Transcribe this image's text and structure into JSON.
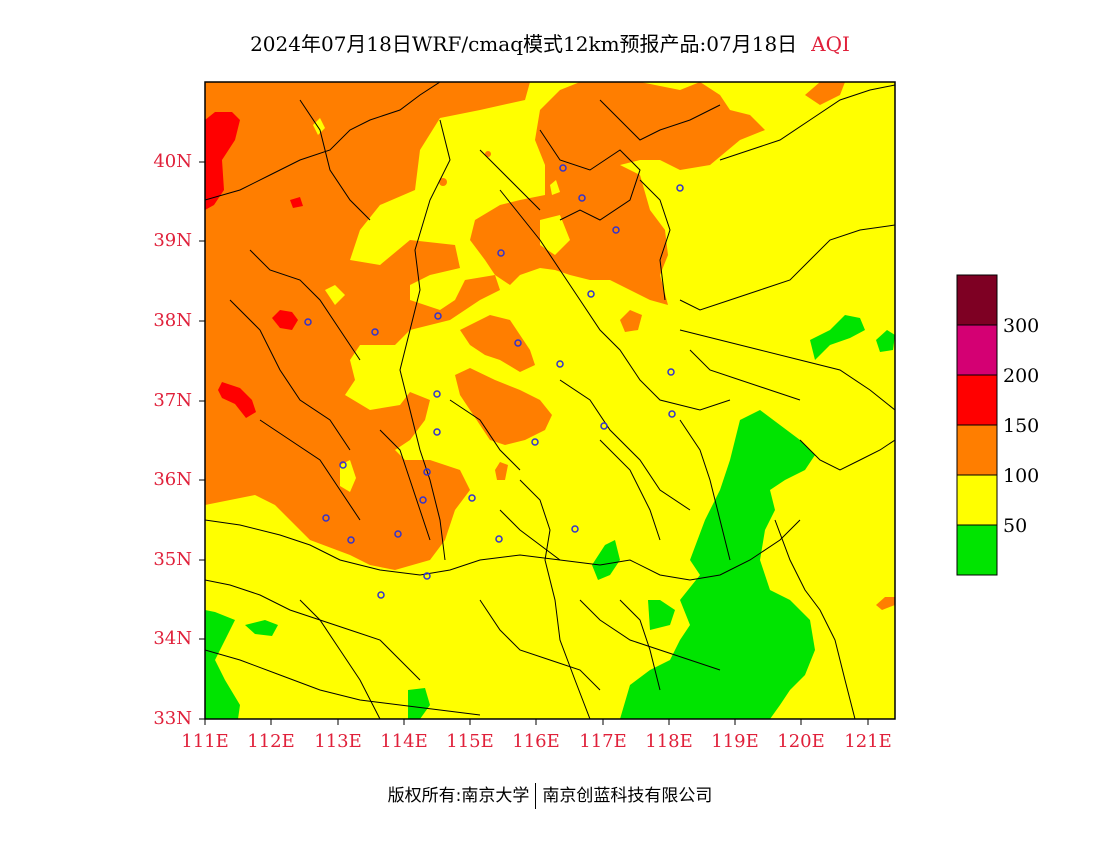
{
  "title": {
    "main": "2024年07月18日WRF/cmaq模式12km预报产品:07月18日",
    "product": "AQI"
  },
  "axes": {
    "lat_labels": [
      "33N",
      "34N",
      "35N",
      "36N",
      "37N",
      "38N",
      "39N",
      "40N"
    ],
    "lon_labels": [
      "111E",
      "112E",
      "113E",
      "114E",
      "115E",
      "116E",
      "117E",
      "118E",
      "119E",
      "120E",
      "121E"
    ],
    "lat_range": [
      33,
      41
    ],
    "lon_range": [
      111,
      121.4
    ]
  },
  "legend": {
    "labels": [
      "50",
      "100",
      "150",
      "200",
      "300"
    ],
    "colors": [
      "#00e400",
      "#ffff00",
      "#ff7e00",
      "#ff0000",
      "#d40073",
      "#7e0023"
    ]
  },
  "copyright": {
    "left": "版权所有:南京大学",
    "right": "南京创蓝科技有限公司"
  },
  "colors": {
    "good": "#00e400",
    "moderate": "#ffff00",
    "usg": "#ff7e00",
    "unhealthy": "#ff0000",
    "stations": "#3333cc",
    "label_red": "#e0203a"
  }
}
